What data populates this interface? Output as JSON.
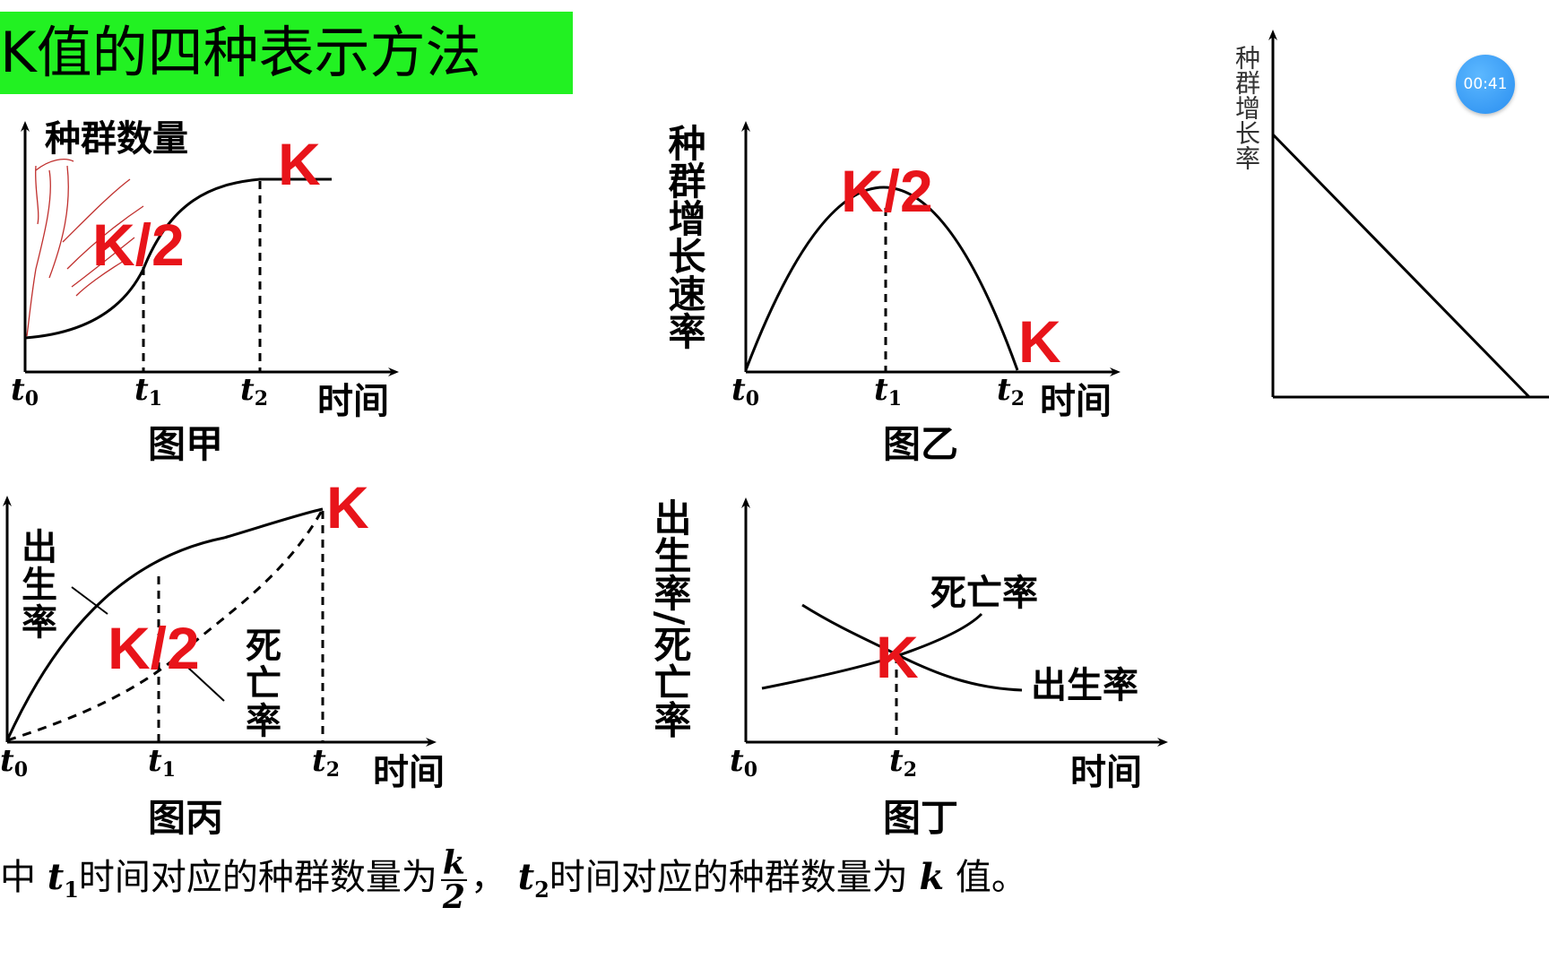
{
  "title": "K值的四种表示方法",
  "timer": "00:41",
  "k_label": "K",
  "k_half_label": "K/2",
  "time_label": "时间",
  "ticks": {
    "t0": "t",
    "t0_sub": "0",
    "t1": "t",
    "t1_sub": "1",
    "t2": "t",
    "t2_sub": "2"
  },
  "fig_jia": {
    "caption": "图甲",
    "ylabel": "种群数量"
  },
  "fig_yi": {
    "caption": "图乙",
    "ylabel": "种群增长速率"
  },
  "fig_bing": {
    "caption": "图丙",
    "birth_chars": [
      "出",
      "生",
      "率"
    ],
    "death_chars": [
      "死",
      "亡",
      "率"
    ]
  },
  "fig_ding": {
    "caption": "图丁",
    "ylabel": "出生率/死亡率",
    "death_label": "死亡率",
    "birth_label": "出生率"
  },
  "side_fig": {
    "ylabel": "种群增长率"
  },
  "bottom": {
    "part1": "中",
    "t1": "t",
    "t1_sub": "1",
    "part2": "时间对应的种群数量为",
    "frac_num": "k",
    "frac_den": "2",
    "part3": "，",
    "t2": "t",
    "t2_sub": "2",
    "part4": "时间对应的种群数量为",
    "kvar": "k",
    "part5": "值。"
  }
}
